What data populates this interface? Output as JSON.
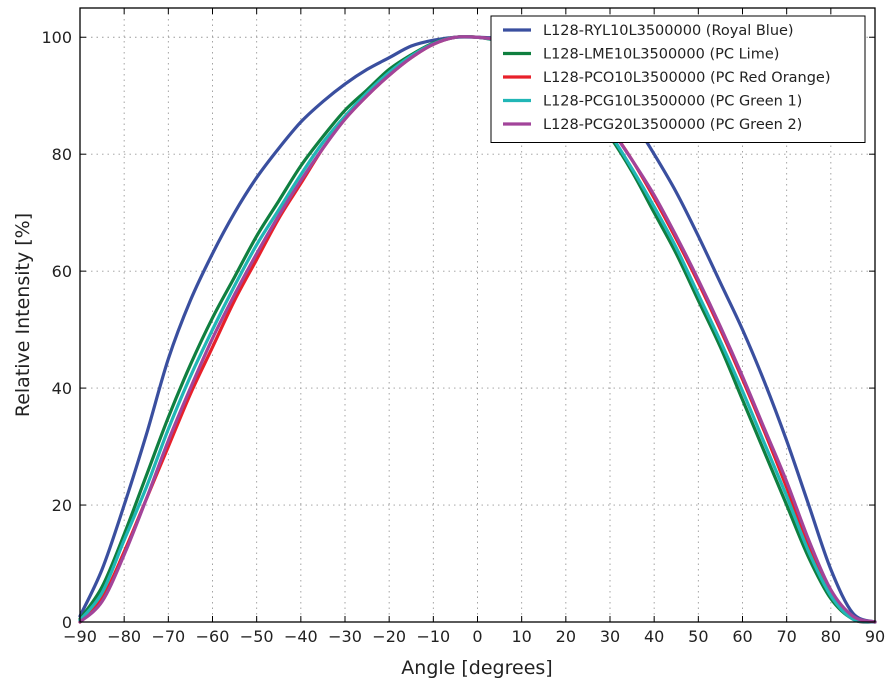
{
  "chart_data": {
    "type": "line",
    "title": "",
    "xlabel": "Angle [degrees]",
    "ylabel": "Relative Intensity [%]",
    "xlim": [
      -90,
      90
    ],
    "ylim": [
      0,
      105
    ],
    "xticks": [
      -90,
      -80,
      -70,
      -60,
      -50,
      -40,
      -30,
      -20,
      -10,
      0,
      10,
      20,
      30,
      40,
      50,
      60,
      70,
      80,
      90
    ],
    "xtick_labels": [
      "−90",
      "−80",
      "−70",
      "−60",
      "−50",
      "−40",
      "−30",
      "−20",
      "−10",
      "0",
      "10",
      "20",
      "30",
      "40",
      "50",
      "60",
      "70",
      "80",
      "90"
    ],
    "yticks": [
      0,
      20,
      40,
      60,
      80,
      100
    ],
    "ytick_labels": [
      "0",
      "20",
      "40",
      "60",
      "80",
      "100"
    ],
    "grid": true,
    "legend_position": "top-right",
    "series": [
      {
        "name": "L128-RYL10L3500000 (Royal Blue)",
        "color": "#3a4f9f",
        "x": [
          -90,
          -85,
          -80,
          -75,
          -70,
          -65,
          -60,
          -55,
          -50,
          -45,
          -40,
          -35,
          -30,
          -25,
          -20,
          -15,
          -10,
          -5,
          0,
          5,
          10,
          15,
          20,
          25,
          30,
          35,
          40,
          45,
          50,
          55,
          60,
          65,
          70,
          75,
          80,
          85,
          90
        ],
        "y": [
          1,
          9,
          20,
          32,
          45,
          55,
          63,
          70,
          76,
          81,
          85.5,
          89,
          92,
          94.5,
          96.5,
          98.5,
          99.5,
          100,
          100,
          99.8,
          99.3,
          98.5,
          97,
          94.5,
          91,
          86,
          80,
          73.5,
          66,
          58,
          50,
          41,
          31,
          20,
          9,
          1.5,
          0
        ]
      },
      {
        "name": "L128-LME10L3500000 (PC Lime)",
        "color": "#0f7f3f",
        "x": [
          -90,
          -85,
          -80,
          -75,
          -70,
          -65,
          -60,
          -55,
          -50,
          -45,
          -40,
          -35,
          -30,
          -25,
          -20,
          -15,
          -10,
          -5,
          0,
          5,
          10,
          15,
          20,
          25,
          30,
          35,
          40,
          45,
          50,
          55,
          60,
          65,
          70,
          75,
          80,
          85,
          90
        ],
        "y": [
          0.5,
          6,
          15,
          25,
          35,
          44,
          52,
          59,
          66,
          72,
          78,
          83,
          87.5,
          91,
          94.5,
          97,
          99,
          100,
          100,
          99.3,
          98,
          95.5,
          92,
          88,
          83,
          77,
          70,
          63,
          55,
          47,
          38,
          29,
          20,
          11,
          4,
          0.5,
          0
        ]
      },
      {
        "name": "L128-PCO10L3500000 (PC Red Orange)",
        "color": "#e8202a",
        "x": [
          -90,
          -85,
          -80,
          -75,
          -70,
          -65,
          -60,
          -55,
          -50,
          -45,
          -40,
          -35,
          -30,
          -25,
          -20,
          -15,
          -10,
          -5,
          0,
          5,
          10,
          15,
          20,
          25,
          30,
          35,
          40,
          45,
          50,
          55,
          60,
          65,
          70,
          75,
          80,
          85,
          90
        ],
        "y": [
          0,
          4,
          12,
          21,
          30,
          39,
          47,
          55,
          62,
          69,
          75,
          81,
          86,
          90,
          93.5,
          96.5,
          98.8,
          100,
          100,
          99.5,
          98.5,
          96.5,
          93,
          89,
          84.5,
          79,
          72.5,
          65.5,
          58,
          50,
          41.5,
          32.5,
          23,
          13,
          5,
          0.5,
          0
        ]
      },
      {
        "name": "L128-PCG10L3500000 (PC Green 1)",
        "color": "#21b6b6",
        "x": [
          -90,
          -85,
          -80,
          -75,
          -70,
          -65,
          -60,
          -55,
          -50,
          -45,
          -40,
          -35,
          -30,
          -25,
          -20,
          -15,
          -10,
          -5,
          0,
          5,
          10,
          15,
          20,
          25,
          30,
          35,
          40,
          45,
          50,
          55,
          60,
          65,
          70,
          75,
          80,
          85,
          90
        ],
        "y": [
          0.3,
          5,
          14,
          23,
          33,
          42,
          50,
          57.5,
          64.5,
          70.5,
          76.5,
          82,
          86.5,
          90.5,
          94,
          96.8,
          98.9,
          100,
          100,
          99.4,
          98.2,
          96,
          92.5,
          88.5,
          83.5,
          77.5,
          71,
          64,
          56,
          48,
          39.5,
          30.5,
          21.5,
          12,
          4.5,
          0.5,
          0
        ]
      },
      {
        "name": "L128-PCG20L3500000 (PC Green 2)",
        "color": "#a2449a",
        "x": [
          -90,
          -85,
          -80,
          -75,
          -70,
          -65,
          -60,
          -55,
          -50,
          -45,
          -40,
          -35,
          -30,
          -25,
          -20,
          -15,
          -10,
          -5,
          0,
          5,
          10,
          15,
          20,
          25,
          30,
          35,
          40,
          45,
          50,
          55,
          60,
          65,
          70,
          75,
          80,
          85,
          90
        ],
        "y": [
          0,
          3.5,
          11.5,
          21,
          31,
          40,
          48.5,
          56,
          63,
          69.5,
          75.5,
          81,
          86,
          90,
          93.5,
          96.5,
          98.8,
          100,
          100,
          99.5,
          98.5,
          96.5,
          93.5,
          89.5,
          84.5,
          79,
          73,
          66,
          58.5,
          50.5,
          42,
          33,
          24,
          14,
          5.5,
          1,
          0
        ]
      }
    ]
  }
}
